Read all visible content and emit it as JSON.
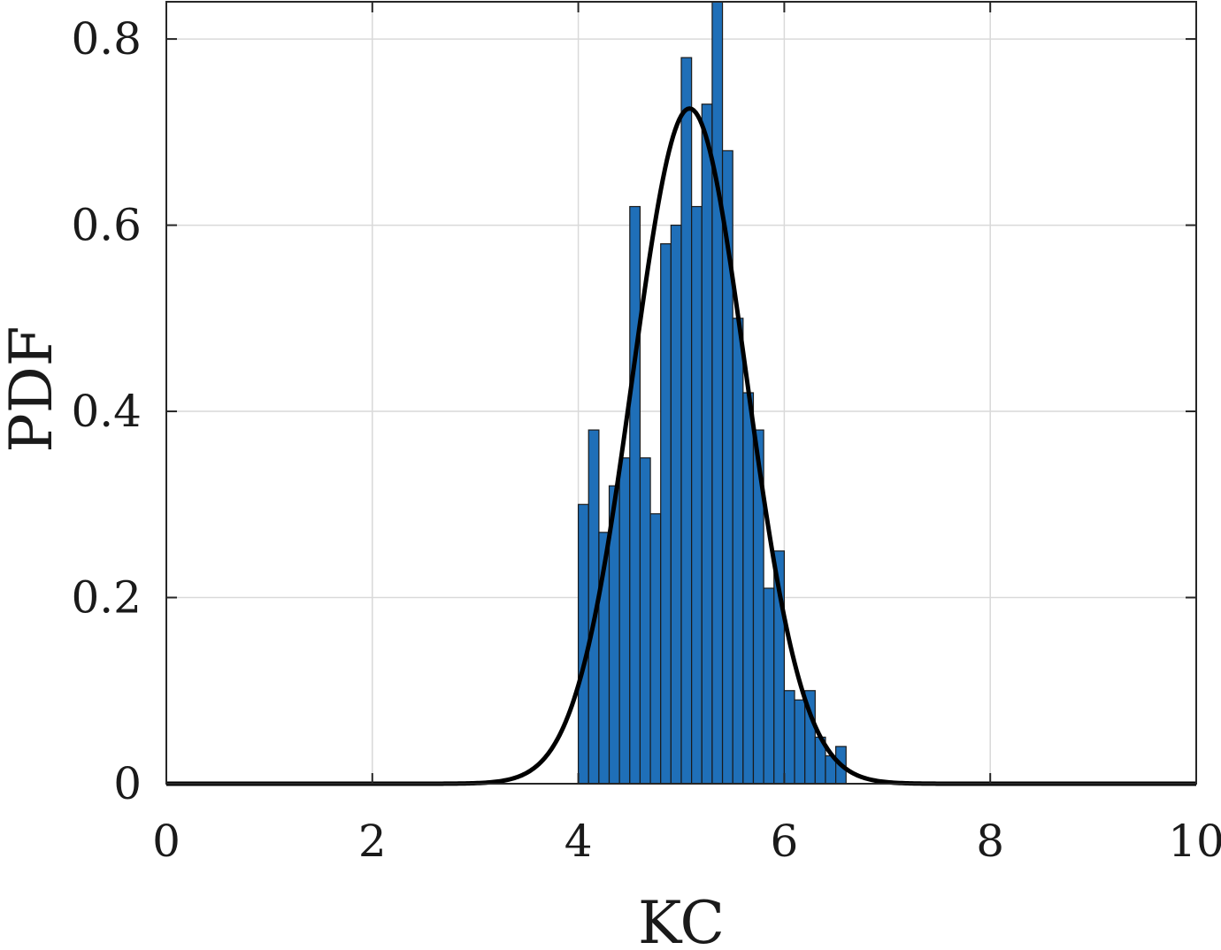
{
  "chart_data": {
    "type": "bar",
    "title": "",
    "xlabel": "KC",
    "ylabel": "PDF",
    "xlim": [
      0,
      10
    ],
    "ylim": [
      0,
      0.84
    ],
    "xticks": [
      0,
      2,
      4,
      6,
      8,
      10
    ],
    "xtick_labels": [
      "0",
      "2",
      "4",
      "6",
      "8",
      "10"
    ],
    "yticks": [
      0,
      0.2,
      0.4,
      0.6,
      0.8
    ],
    "ytick_labels": [
      "0",
      "0.2",
      "0.4",
      "0.6",
      "0.8"
    ],
    "grid": true,
    "bar_color": "#1f6fb8",
    "line_color": "#000000",
    "histogram": {
      "bin_width": 0.1,
      "bin_starts": [
        4.0,
        4.1,
        4.2,
        4.3,
        4.4,
        4.5,
        4.6,
        4.7,
        4.8,
        4.9,
        5.0,
        5.1,
        5.2,
        5.3,
        5.4,
        5.5,
        5.6,
        5.7,
        5.8,
        5.9,
        6.0,
        6.1,
        6.2,
        6.3,
        6.4,
        6.5
      ],
      "values": [
        0.3,
        0.38,
        0.27,
        0.32,
        0.35,
        0.62,
        0.35,
        0.29,
        0.58,
        0.6,
        0.78,
        0.62,
        0.73,
        0.85,
        0.68,
        0.5,
        0.42,
        0.38,
        0.21,
        0.25,
        0.1,
        0.09,
        0.1,
        0.05,
        0.03,
        0.04
      ]
    },
    "fit_curve": {
      "distribution": "normal",
      "mean": 5.08,
      "std": 0.55
    }
  }
}
